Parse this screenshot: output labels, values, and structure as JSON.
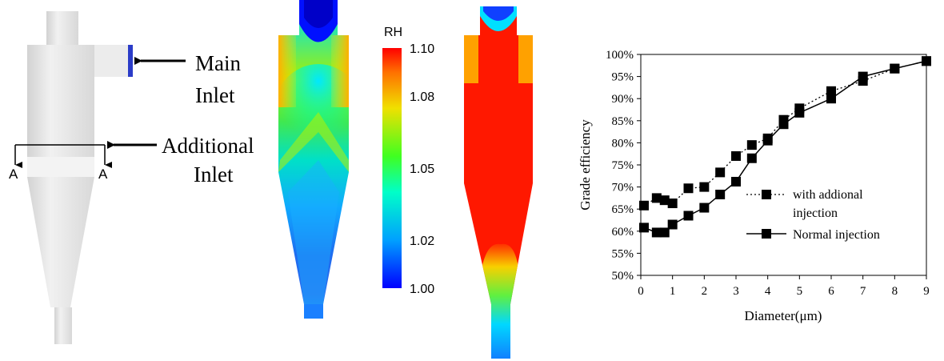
{
  "geometry_panel": {
    "main_inlet_label_line1": "Main",
    "main_inlet_label_line2": "Inlet",
    "additional_inlet_label_line1": "Additional",
    "additional_inlet_label_line2": "Inlet",
    "section_mark_left": "A",
    "section_mark_right": "A",
    "body_color": "#e8e8e8",
    "inlet_color": "#2b3cc8"
  },
  "colorbar": {
    "title": "RH",
    "ticks": [
      "1.10",
      "1.08",
      "1.05",
      "1.02",
      "1.00"
    ],
    "tick_values": [
      1.1,
      1.08,
      1.05,
      1.02,
      1.0
    ],
    "min": 1.0,
    "max": 1.1
  },
  "chart_data": {
    "type": "line",
    "xlabel": "Diameter(μm)",
    "ylabel": "Grade efficiency",
    "xlim": [
      0,
      9
    ],
    "ylim": [
      50,
      100
    ],
    "x_ticks": [
      "0",
      "1",
      "2",
      "3",
      "4",
      "5",
      "6",
      "7",
      "8",
      "9"
    ],
    "y_ticks": [
      "50%",
      "55%",
      "60%",
      "65%",
      "70%",
      "75%",
      "80%",
      "85%",
      "90%",
      "95%",
      "100%"
    ],
    "grid": false,
    "legend_position": "center-right",
    "series": [
      {
        "name": "with addional injection",
        "legend_line1": "with addional",
        "legend_line2": "injection",
        "style": "dotted",
        "x": [
          0.1,
          0.5,
          0.75,
          1.0,
          1.5,
          2.0,
          2.5,
          3.0,
          3.5,
          4.0,
          4.5,
          5.0,
          6.0,
          7.0,
          8.0,
          9.0
        ],
        "y": [
          65.8,
          67.5,
          67.0,
          66.3,
          69.7,
          70.0,
          73.3,
          77.0,
          79.5,
          81.0,
          85.2,
          87.8,
          91.7,
          94.0,
          96.8,
          98.5
        ]
      },
      {
        "name": "Normal injection",
        "style": "solid",
        "x": [
          0.1,
          0.5,
          0.75,
          1.0,
          1.5,
          2.0,
          2.5,
          3.0,
          3.5,
          4.0,
          4.5,
          5.0,
          6.0,
          7.0,
          8.0,
          9.0
        ],
        "y": [
          60.8,
          59.7,
          59.7,
          61.5,
          63.5,
          65.3,
          68.3,
          71.2,
          76.5,
          80.5,
          84.2,
          86.8,
          90.0,
          95.0,
          96.8,
          98.5
        ]
      }
    ]
  }
}
